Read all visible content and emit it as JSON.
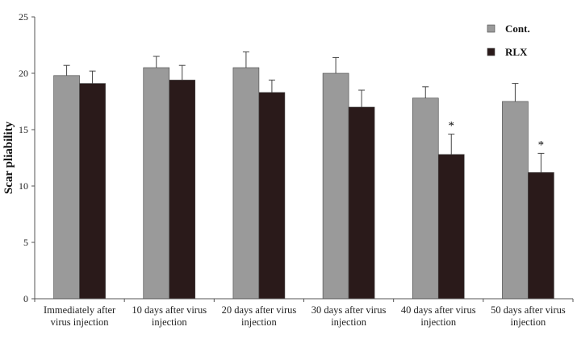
{
  "chart_data": {
    "type": "bar",
    "title": "",
    "xlabel": "",
    "ylabel": "Scar pliability",
    "ylim": [
      0,
      25
    ],
    "yticks": [
      0,
      5,
      10,
      15,
      20,
      25
    ],
    "grid": false,
    "legend_position": "top-right",
    "categories": [
      [
        "Immediately after",
        "virus injection"
      ],
      [
        "10 days after virus",
        "injection"
      ],
      [
        "20 days after virus",
        "injection"
      ],
      [
        "30 days after virus",
        "injection"
      ],
      [
        "40 days after virus",
        "injection"
      ],
      [
        "50 days after virus",
        "injection"
      ]
    ],
    "series": [
      {
        "name": "Cont.",
        "color": "#9a9a9a",
        "values": [
          19.8,
          20.5,
          20.5,
          20.0,
          17.8,
          17.5
        ],
        "errors": [
          0.9,
          1.0,
          1.4,
          1.4,
          1.0,
          1.6
        ]
      },
      {
        "name": "RLX",
        "color": "#2a1a1a",
        "values": [
          19.1,
          19.4,
          18.3,
          17.0,
          12.8,
          11.2
        ],
        "errors": [
          1.1,
          1.3,
          1.1,
          1.5,
          1.8,
          1.7
        ]
      }
    ],
    "significance": [
      {
        "category_index": 4,
        "series_index": 1,
        "label": "*"
      },
      {
        "category_index": 5,
        "series_index": 1,
        "label": "*"
      }
    ]
  }
}
